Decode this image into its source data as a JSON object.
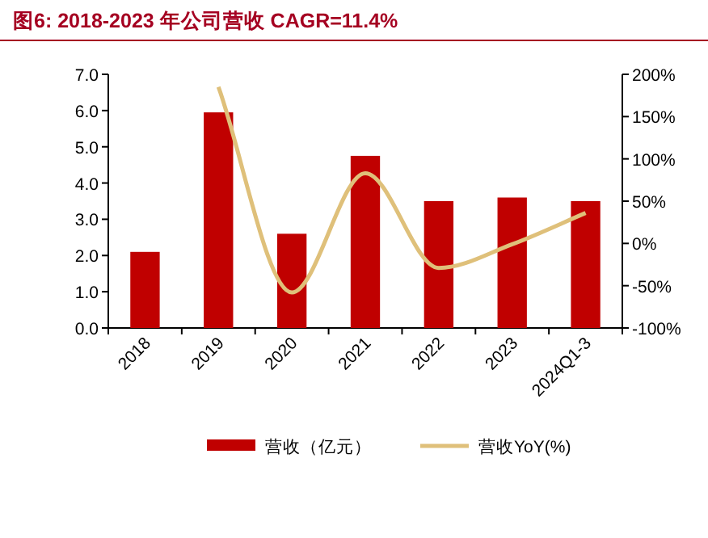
{
  "chart_data": {
    "type": "bar",
    "title": "图6:  2018-2023 年公司营收 CAGR=11.4%",
    "categories": [
      "2018",
      "2019",
      "2020",
      "2021",
      "2022",
      "2023",
      "2024Q1-3"
    ],
    "series": [
      {
        "name": "营收（亿元）",
        "color": "#c00000",
        "values": [
          2.1,
          5.95,
          2.6,
          4.75,
          3.5,
          3.6,
          3.5
        ]
      },
      {
        "name": "营收YoY(%)",
        "type": "line",
        "axis": "y2",
        "color": "#dfc07a",
        "values": [
          null,
          185,
          -58,
          83,
          -29,
          -1,
          36
        ]
      }
    ],
    "ylim": [
      0,
      7
    ],
    "yticks": [
      {
        "value": 0,
        "label": "0.0"
      },
      {
        "value": 1,
        "label": "1.0"
      },
      {
        "value": 2,
        "label": "2.0"
      },
      {
        "value": 3,
        "label": "3.0"
      },
      {
        "value": 4,
        "label": "4.0"
      },
      {
        "value": 5,
        "label": "5.0"
      },
      {
        "value": 6,
        "label": "6.0"
      },
      {
        "value": 7,
        "label": "7.0"
      }
    ],
    "y2lim": [
      -100,
      200
    ],
    "y2ticks": [
      {
        "value": -100,
        "label": "-100%"
      },
      {
        "value": -50,
        "label": "-50%"
      },
      {
        "value": 0,
        "label": "0%"
      },
      {
        "value": 50,
        "label": "50%"
      },
      {
        "value": 100,
        "label": "100%"
      },
      {
        "value": 150,
        "label": "150%"
      },
      {
        "value": 200,
        "label": "200%"
      }
    ],
    "legend": "bottom",
    "marker": "none",
    "line_style": "solid"
  }
}
